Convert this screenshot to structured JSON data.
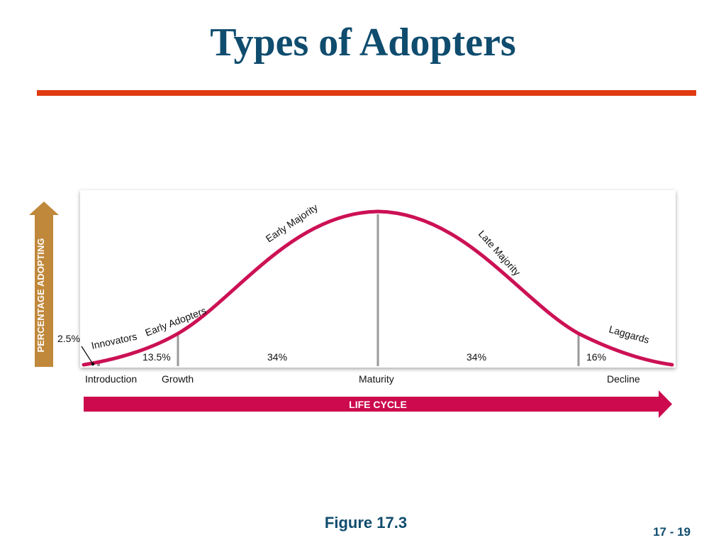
{
  "slide": {
    "title": "Types of Adopters",
    "caption": "Figure 17.3",
    "page_number": "17 - 19"
  },
  "diagram": {
    "y_axis_label": "PERCENTAGE ADOPTING",
    "x_axis_label": "LIFE CYCLE",
    "curve_labels": {
      "innovators": "Innovators",
      "early_adopters": "Early Adopters",
      "early_majority": "Early Majority",
      "late_majority": "Late Majority",
      "laggards": "Laggards"
    },
    "percentages": {
      "innovators": "2.5%",
      "early_adopters": "13.5%",
      "early_majority": "34%",
      "late_majority": "34%",
      "laggards": "16%"
    },
    "stages": {
      "introduction": "Introduction",
      "growth": "Growth",
      "maturity": "Maturity",
      "decline": "Decline"
    },
    "colors": {
      "curve": "#cc1155",
      "life_cycle_arrow": "#cc0a4d",
      "y_arrow": "#c0883a",
      "divider": "#9a9a9a"
    }
  }
}
